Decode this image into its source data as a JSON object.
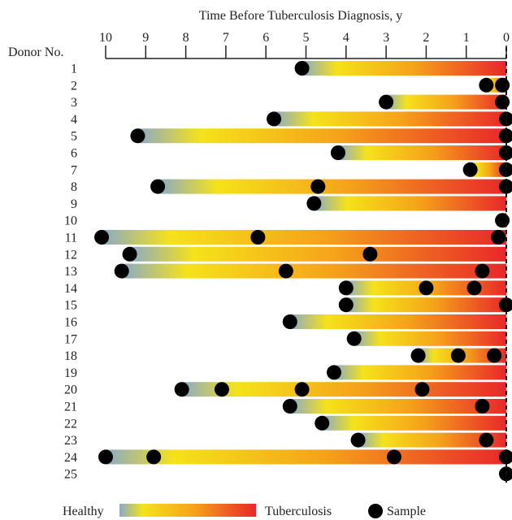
{
  "chart_data": {
    "type": "timeline",
    "title": "Time Before Tuberculosis Diagnosis, y",
    "ylabel": "Donor No.",
    "xlim": [
      10,
      0
    ],
    "x_ticks": [
      "10",
      "9",
      "8",
      "7",
      "6",
      "5",
      "4",
      "3",
      "2",
      "1",
      "0"
    ],
    "legend": {
      "healthy": "Healthy",
      "tuberculosis": "Tuberculosis",
      "sample": "Sample"
    },
    "colors": {
      "healthy": "#8aaac8",
      "mid": "#f5e21a",
      "orange": "#f5a21a",
      "tuberculosis": "#e8272a",
      "sample": "#000000"
    },
    "donors": [
      {
        "id": "1",
        "start": 5.1,
        "samples": [
          5.1
        ]
      },
      {
        "id": "2",
        "start": 0.5,
        "samples": [
          0.5,
          0.1
        ]
      },
      {
        "id": "3",
        "start": 3.0,
        "samples": [
          3.0,
          0.1
        ]
      },
      {
        "id": "4",
        "start": 5.8,
        "samples": [
          5.8,
          0.0
        ]
      },
      {
        "id": "5",
        "start": 9.2,
        "samples": [
          9.2,
          0.0
        ]
      },
      {
        "id": "6",
        "start": 4.2,
        "samples": [
          4.2,
          0.0
        ]
      },
      {
        "id": "7",
        "start": 0.9,
        "samples": [
          0.9,
          0.0
        ]
      },
      {
        "id": "8",
        "start": 8.7,
        "samples": [
          8.7,
          4.7,
          0.0
        ]
      },
      {
        "id": "9",
        "start": 4.8,
        "samples": [
          4.8
        ]
      },
      {
        "id": "10",
        "start": 0.1,
        "samples": [
          0.1
        ]
      },
      {
        "id": "11",
        "start": 10.1,
        "samples": [
          10.1,
          6.2,
          0.2
        ]
      },
      {
        "id": "12",
        "start": 9.4,
        "samples": [
          9.4,
          3.4
        ]
      },
      {
        "id": "13",
        "start": 9.6,
        "samples": [
          9.6,
          5.5,
          0.6
        ]
      },
      {
        "id": "14",
        "start": 4.0,
        "samples": [
          4.0,
          2.0,
          0.8
        ]
      },
      {
        "id": "15",
        "start": 4.0,
        "samples": [
          4.0,
          0.0
        ]
      },
      {
        "id": "16",
        "start": 5.4,
        "samples": [
          5.4
        ]
      },
      {
        "id": "17",
        "start": 3.8,
        "samples": [
          3.8
        ]
      },
      {
        "id": "18",
        "start": 2.2,
        "samples": [
          2.2,
          1.2,
          0.3
        ]
      },
      {
        "id": "19",
        "start": 4.3,
        "samples": [
          4.3
        ]
      },
      {
        "id": "20",
        "start": 8.1,
        "samples": [
          8.1,
          7.1,
          5.1,
          2.1
        ]
      },
      {
        "id": "21",
        "start": 5.4,
        "samples": [
          5.4,
          0.6
        ]
      },
      {
        "id": "22",
        "start": 4.6,
        "samples": [
          4.6
        ]
      },
      {
        "id": "23",
        "start": 3.7,
        "samples": [
          3.7,
          0.5
        ]
      },
      {
        "id": "24",
        "start": 10.0,
        "samples": [
          10.0,
          8.8,
          2.8,
          0.0
        ]
      },
      {
        "id": "25",
        "start": 0.05,
        "samples": [
          0.0
        ]
      }
    ]
  }
}
